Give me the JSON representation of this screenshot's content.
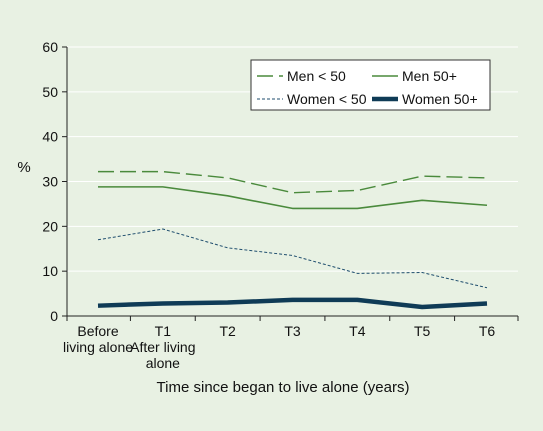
{
  "chart_data": {
    "type": "line",
    "title": "",
    "xlabel": "Time since began to live alone (years)",
    "ylabel": "%",
    "ylim": [
      0,
      60
    ],
    "yticks": [
      "0",
      "10",
      "20",
      "30",
      "40",
      "50",
      "60"
    ],
    "grid": true,
    "legend_position": "top-right",
    "categories": [
      [
        "Before",
        "living alone"
      ],
      [
        "T1",
        "After living",
        "alone"
      ],
      [
        "T2"
      ],
      [
        "T3"
      ],
      [
        "T4"
      ],
      [
        "T5"
      ],
      [
        "T6"
      ]
    ],
    "series": [
      {
        "name": "Men < 50",
        "color": "#4a8a3c",
        "style": "long-dash",
        "values": [
          32.2,
          32.2,
          30.8,
          27.5,
          28.0,
          31.2,
          30.8
        ]
      },
      {
        "name": "Men 50+",
        "color": "#4a8a3c",
        "style": "solid",
        "values": [
          28.8,
          28.8,
          26.8,
          24.0,
          24.0,
          25.8,
          24.7
        ]
      },
      {
        "name": "Women < 50",
        "color": "#1f4e6e",
        "style": "short-dash",
        "values": [
          17.0,
          19.4,
          15.2,
          13.5,
          9.5,
          9.7,
          6.3
        ]
      },
      {
        "name": "Women 50+",
        "color": "#0f3b56",
        "style": "thick",
        "values": [
          2.3,
          2.8,
          3.0,
          3.6,
          3.6,
          2.0,
          2.8
        ]
      }
    ]
  }
}
